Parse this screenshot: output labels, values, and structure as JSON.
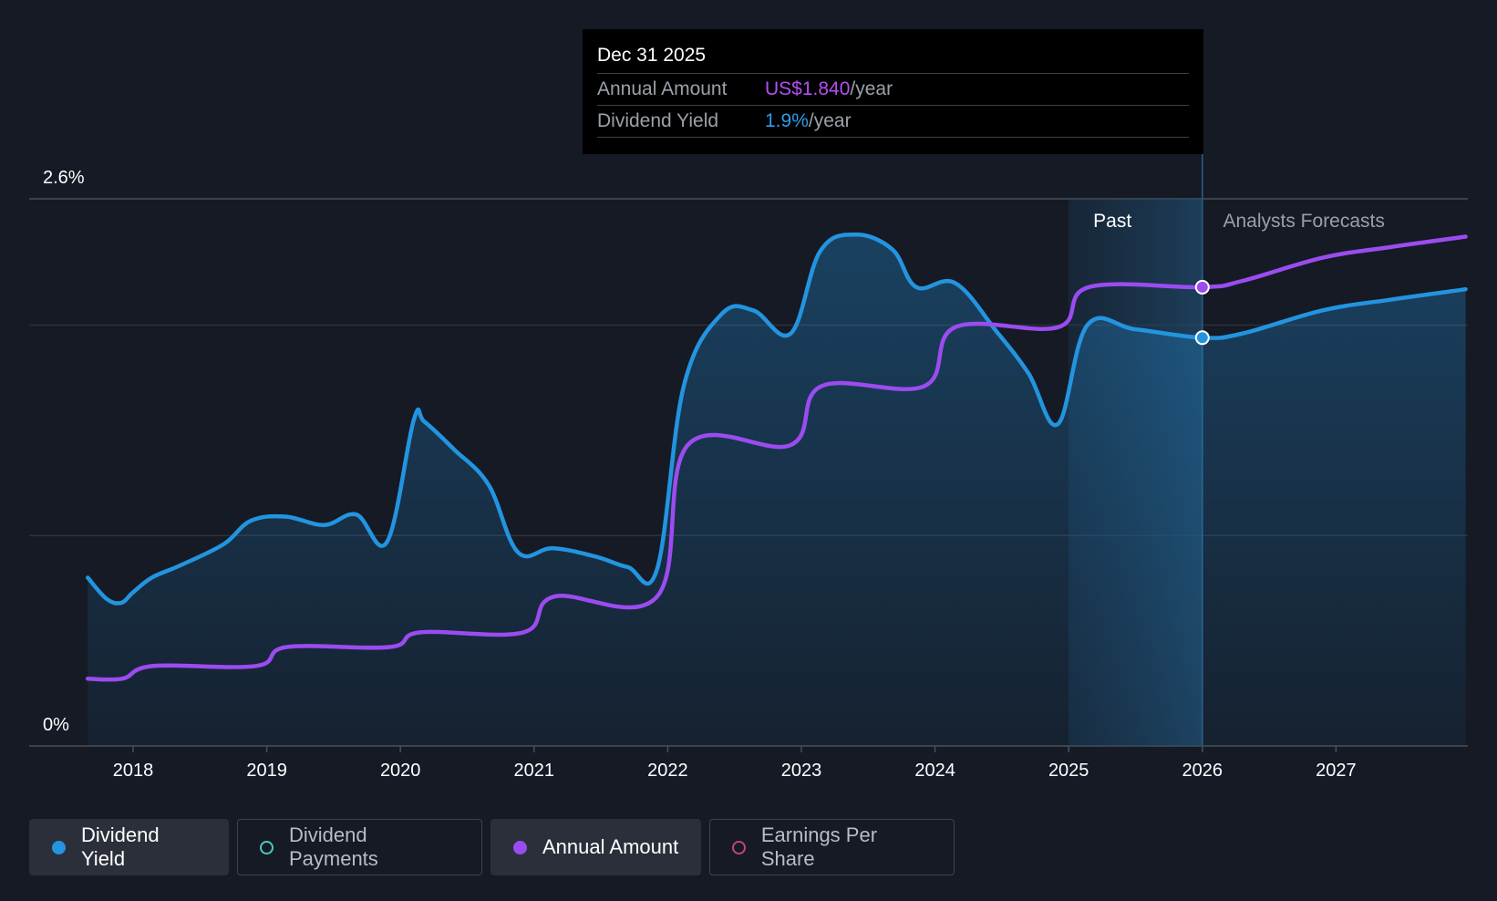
{
  "chart_data": {
    "type": "line",
    "y_axis": {
      "ticks": [
        "2.6%",
        "0%"
      ],
      "ylim": [
        0,
        2.6
      ],
      "unit": "%"
    },
    "x_axis": {
      "ticks": [
        "2018",
        "2019",
        "2020",
        "2021",
        "2022",
        "2023",
        "2024",
        "2025",
        "2026",
        "2027"
      ],
      "xlim": [
        2017.65,
        2027.98
      ]
    },
    "regions": {
      "past_label": "Past",
      "forecast_label": "Analysts Forecasts",
      "past_band": [
        2025.0,
        2026.0
      ],
      "split_at": 2026.0
    },
    "series": [
      {
        "name": "Dividend Yield",
        "color": "#2394df",
        "area": true,
        "points": [
          [
            2017.66,
            0.8
          ],
          [
            2017.8,
            0.7
          ],
          [
            2017.91,
            0.68
          ],
          [
            2018.0,
            0.73
          ],
          [
            2018.14,
            0.8
          ],
          [
            2018.36,
            0.86
          ],
          [
            2018.68,
            0.96
          ],
          [
            2018.88,
            1.07
          ],
          [
            2019.14,
            1.09
          ],
          [
            2019.43,
            1.05
          ],
          [
            2019.67,
            1.1
          ],
          [
            2019.9,
            0.97
          ],
          [
            2020.1,
            1.55
          ],
          [
            2020.18,
            1.54
          ],
          [
            2020.4,
            1.41
          ],
          [
            2020.66,
            1.24
          ],
          [
            2020.88,
            0.92
          ],
          [
            2021.14,
            0.94
          ],
          [
            2021.46,
            0.9
          ],
          [
            2021.7,
            0.85
          ],
          [
            2021.92,
            0.84
          ],
          [
            2022.12,
            1.71
          ],
          [
            2022.4,
            2.05
          ],
          [
            2022.64,
            2.07
          ],
          [
            2022.92,
            1.96
          ],
          [
            2023.14,
            2.35
          ],
          [
            2023.4,
            2.43
          ],
          [
            2023.68,
            2.36
          ],
          [
            2023.86,
            2.18
          ],
          [
            2024.15,
            2.2
          ],
          [
            2024.46,
            1.97
          ],
          [
            2024.7,
            1.77
          ],
          [
            2024.92,
            1.53
          ],
          [
            2025.14,
            2.0
          ],
          [
            2025.5,
            1.98
          ],
          [
            2026.0,
            1.94
          ],
          [
            2026.3,
            1.96
          ],
          [
            2026.9,
            2.07
          ],
          [
            2027.4,
            2.12
          ],
          [
            2027.97,
            2.17
          ]
        ]
      },
      {
        "name": "Annual Amount",
        "color": "#9b4cf0",
        "area": false,
        "points": [
          [
            2017.66,
            0.32
          ],
          [
            2017.92,
            0.32
          ],
          [
            2018.15,
            0.38
          ],
          [
            2018.92,
            0.38
          ],
          [
            2019.15,
            0.47
          ],
          [
            2019.92,
            0.47
          ],
          [
            2020.15,
            0.54
          ],
          [
            2020.92,
            0.54
          ],
          [
            2021.15,
            0.71
          ],
          [
            2021.92,
            0.71
          ],
          [
            2022.15,
            1.43
          ],
          [
            2022.92,
            1.43
          ],
          [
            2023.15,
            1.71
          ],
          [
            2023.92,
            1.71
          ],
          [
            2024.15,
            1.99
          ],
          [
            2024.92,
            1.99
          ],
          [
            2025.15,
            2.18
          ],
          [
            2026.0,
            2.18
          ],
          [
            2026.3,
            2.21
          ],
          [
            2026.9,
            2.32
          ],
          [
            2027.4,
            2.37
          ],
          [
            2027.97,
            2.42
          ]
        ]
      }
    ],
    "highlight_x": 2026.0,
    "highlight": {
      "yield": 1.94,
      "amount": 2.18
    }
  },
  "tooltip": {
    "date": "Dec 31 2025",
    "rows": [
      {
        "label": "Annual Amount",
        "value": "US$1.840",
        "unit": "/year",
        "color": "#b24ff2"
      },
      {
        "label": "Dividend Yield",
        "value": "1.9%",
        "unit": "/year",
        "color": "#2d9ce8"
      }
    ]
  },
  "legend": [
    {
      "label": "Dividend Yield",
      "active": true,
      "dot_color": "#2394df",
      "filled": true
    },
    {
      "label": "Dividend Payments",
      "active": false,
      "dot_color": "#4fc7b8",
      "filled": false
    },
    {
      "label": "Annual Amount",
      "active": true,
      "dot_color": "#9b4cf0",
      "filled": true
    },
    {
      "label": "Earnings Per Share",
      "active": false,
      "dot_color": "#c4466f",
      "filled": false
    }
  ]
}
